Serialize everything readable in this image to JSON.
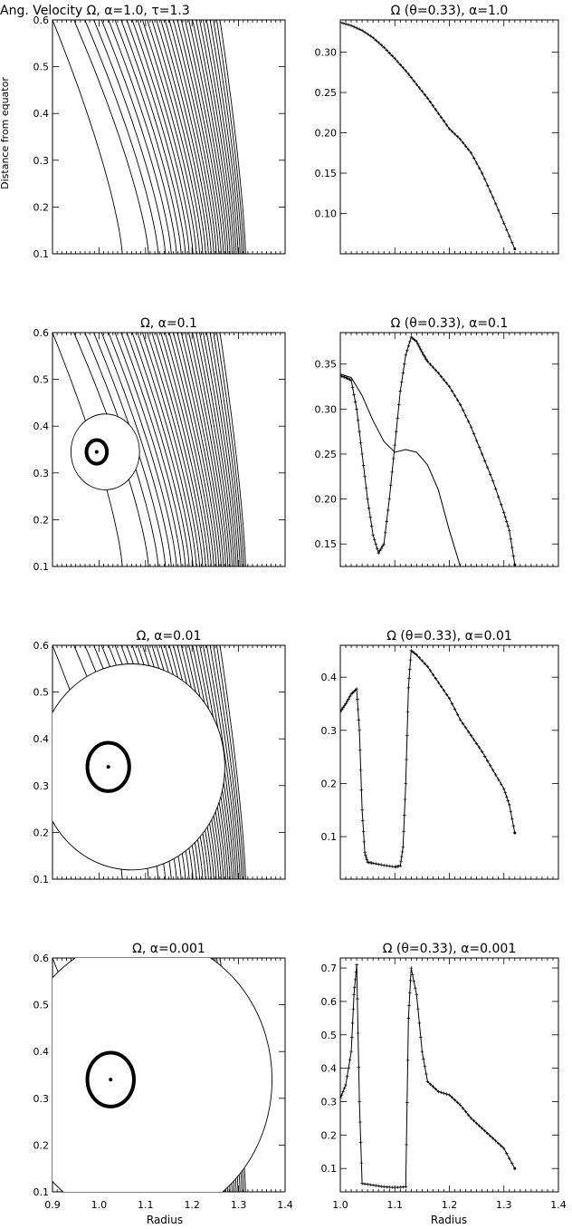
{
  "figure": {
    "ylabel": "Distance from equator",
    "xlabel": "Radius"
  },
  "chart_data": [
    {
      "type": "contour",
      "title": "Ang. Velocity   Ω,  α=1.0,  τ=1.3",
      "xlim": [
        0.9,
        1.4
      ],
      "ylim": [
        0.1,
        0.6
      ],
      "yticks": [
        0.1,
        0.2,
        0.3,
        0.4,
        0.5,
        0.6
      ],
      "vortex": null
    },
    {
      "type": "line",
      "title": "Ω (θ=0.33), α=1.0",
      "xlim": [
        1.0,
        1.4
      ],
      "ylim": [
        0.05,
        0.34
      ],
      "yticks": [
        0.1,
        0.15,
        0.2,
        0.25,
        0.3
      ],
      "series": [
        {
          "markers": true,
          "x": [
            1.0,
            1.02,
            1.04,
            1.06,
            1.08,
            1.1,
            1.12,
            1.14,
            1.16,
            1.18,
            1.2,
            1.22,
            1.24,
            1.26,
            1.28,
            1.3,
            1.32
          ],
          "y": [
            0.337,
            0.333,
            0.327,
            0.318,
            0.306,
            0.292,
            0.277,
            0.26,
            0.243,
            0.224,
            0.205,
            0.192,
            0.175,
            0.15,
            0.12,
            0.088,
            0.056
          ]
        }
      ]
    },
    {
      "type": "contour",
      "title": "Ω,  α=0.1",
      "xlim": [
        0.9,
        1.4
      ],
      "ylim": [
        0.1,
        0.6
      ],
      "yticks": [
        0.1,
        0.2,
        0.3,
        0.4,
        0.5,
        0.6
      ],
      "vortex": {
        "x": 0.995,
        "y": 0.345,
        "core": 0.022,
        "rings": 4
      }
    },
    {
      "type": "line",
      "title": "Ω (θ=0.33), α=0.1",
      "xlim": [
        1.0,
        1.4
      ],
      "ylim": [
        0.125,
        0.385
      ],
      "yticks": [
        0.15,
        0.2,
        0.25,
        0.3,
        0.35
      ],
      "series": [
        {
          "markers": true,
          "x": [
            1.0,
            1.01,
            1.02,
            1.03,
            1.04,
            1.05,
            1.06,
            1.07,
            1.08,
            1.09,
            1.1,
            1.11,
            1.12,
            1.13,
            1.14,
            1.15,
            1.16,
            1.18,
            1.2,
            1.22,
            1.24,
            1.26,
            1.28,
            1.3,
            1.31,
            1.32
          ],
          "y": [
            0.337,
            0.335,
            0.332,
            0.3,
            0.25,
            0.2,
            0.16,
            0.14,
            0.15,
            0.2,
            0.26,
            0.32,
            0.36,
            0.38,
            0.375,
            0.363,
            0.353,
            0.34,
            0.325,
            0.305,
            0.28,
            0.25,
            0.22,
            0.185,
            0.165,
            0.127
          ]
        },
        {
          "markers": false,
          "x": [
            1.0,
            1.02,
            1.04,
            1.06,
            1.08,
            1.1,
            1.12,
            1.14,
            1.16,
            1.18,
            1.2,
            1.22
          ],
          "y": [
            0.339,
            0.335,
            0.315,
            0.287,
            0.264,
            0.252,
            0.255,
            0.252,
            0.238,
            0.21,
            0.165,
            0.125
          ]
        }
      ]
    },
    {
      "type": "contour",
      "title": "Ω,  α=0.01",
      "xlim": [
        0.9,
        1.4
      ],
      "ylim": [
        0.1,
        0.6
      ],
      "yticks": [
        0.1,
        0.2,
        0.3,
        0.4,
        0.5,
        0.6
      ],
      "vortex": {
        "x": 1.02,
        "y": 0.34,
        "core": 0.045,
        "rings": 6
      }
    },
    {
      "type": "line",
      "title": "Ω (θ=0.33), α=0.01",
      "xlim": [
        1.0,
        1.4
      ],
      "ylim": [
        0.02,
        0.46
      ],
      "yticks": [
        0.1,
        0.2,
        0.3,
        0.4
      ],
      "series": [
        {
          "markers": true,
          "x": [
            1.0,
            1.01,
            1.02,
            1.03,
            1.035,
            1.04,
            1.045,
            1.05,
            1.06,
            1.08,
            1.1,
            1.11,
            1.115,
            1.12,
            1.125,
            1.13,
            1.14,
            1.16,
            1.18,
            1.2,
            1.22,
            1.24,
            1.26,
            1.28,
            1.3,
            1.31,
            1.32
          ],
          "y": [
            0.335,
            0.35,
            0.368,
            0.378,
            0.3,
            0.15,
            0.07,
            0.052,
            0.05,
            0.046,
            0.043,
            0.045,
            0.08,
            0.2,
            0.38,
            0.45,
            0.442,
            0.42,
            0.39,
            0.36,
            0.32,
            0.29,
            0.26,
            0.225,
            0.19,
            0.16,
            0.107
          ]
        }
      ]
    },
    {
      "type": "contour",
      "title": "Ω,  α=0.001",
      "xlim": [
        0.9,
        1.4
      ],
      "ylim": [
        0.1,
        0.6
      ],
      "yticks": [
        0.1,
        0.2,
        0.3,
        0.4,
        0.5,
        0.6
      ],
      "xticks": [
        0.9,
        1.0,
        1.1,
        1.2,
        1.3,
        1.4
      ],
      "vortex": {
        "x": 1.025,
        "y": 0.34,
        "core": 0.05,
        "rings": 8
      }
    },
    {
      "type": "line",
      "title": "Ω (θ=0.33), α=0.001",
      "xlim": [
        1.0,
        1.4
      ],
      "ylim": [
        0.03,
        0.73
      ],
      "yticks": [
        0.1,
        0.2,
        0.3,
        0.4,
        0.5,
        0.6,
        0.7
      ],
      "xticks": [
        1.0,
        1.1,
        1.2,
        1.3,
        1.4
      ],
      "series": [
        {
          "markers": true,
          "x": [
            1.0,
            1.01,
            1.02,
            1.025,
            1.03,
            1.035,
            1.04,
            1.06,
            1.08,
            1.1,
            1.12,
            1.125,
            1.13,
            1.14,
            1.15,
            1.16,
            1.18,
            1.2,
            1.22,
            1.24,
            1.26,
            1.28,
            1.3,
            1.32
          ],
          "y": [
            0.31,
            0.35,
            0.45,
            0.62,
            0.71,
            0.3,
            0.055,
            0.05,
            0.045,
            0.043,
            0.045,
            0.55,
            0.7,
            0.62,
            0.45,
            0.36,
            0.33,
            0.32,
            0.29,
            0.25,
            0.22,
            0.19,
            0.16,
            0.1
          ]
        }
      ]
    }
  ]
}
